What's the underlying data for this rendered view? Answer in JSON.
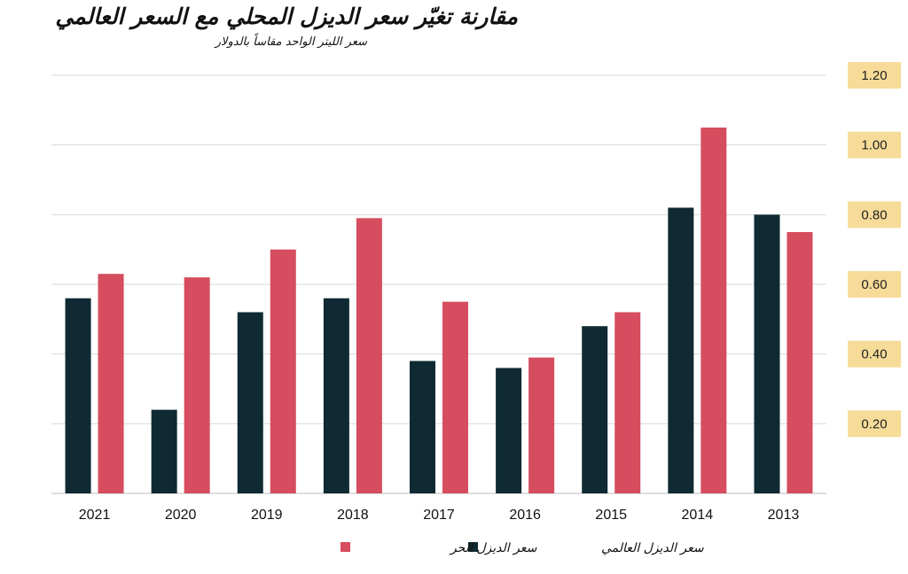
{
  "chart_data": {
    "type": "bar",
    "title": "مقارنة تغيّر سعر الديزل المحلي مع السعر العالمي",
    "subtitle": "سعر الليتر الواحد مقاساً بالدولار",
    "categories": [
      "2021",
      "2020",
      "2019",
      "2018",
      "2017",
      "2016",
      "2015",
      "2014",
      "2013"
    ],
    "series": [
      {
        "name": "سعر الديزل العالمي",
        "color": "#0f2a33",
        "values": [
          0.56,
          0.24,
          0.52,
          0.56,
          0.38,
          0.36,
          0.48,
          0.82,
          0.8
        ]
      },
      {
        "name": "سعر الديزل الحر",
        "color": "#d54d5e",
        "values": [
          0.63,
          0.62,
          0.7,
          0.79,
          0.55,
          0.39,
          0.52,
          1.05,
          0.75
        ]
      }
    ],
    "y_ticks": [
      "0.20",
      "0.40",
      "0.60",
      "0.80",
      "1.00",
      "1.20"
    ],
    "ylim": [
      0,
      1.2
    ],
    "y_axis_position": "right",
    "tick_label_background": "#f6dc98",
    "grid": true,
    "legend_position": "bottom"
  }
}
